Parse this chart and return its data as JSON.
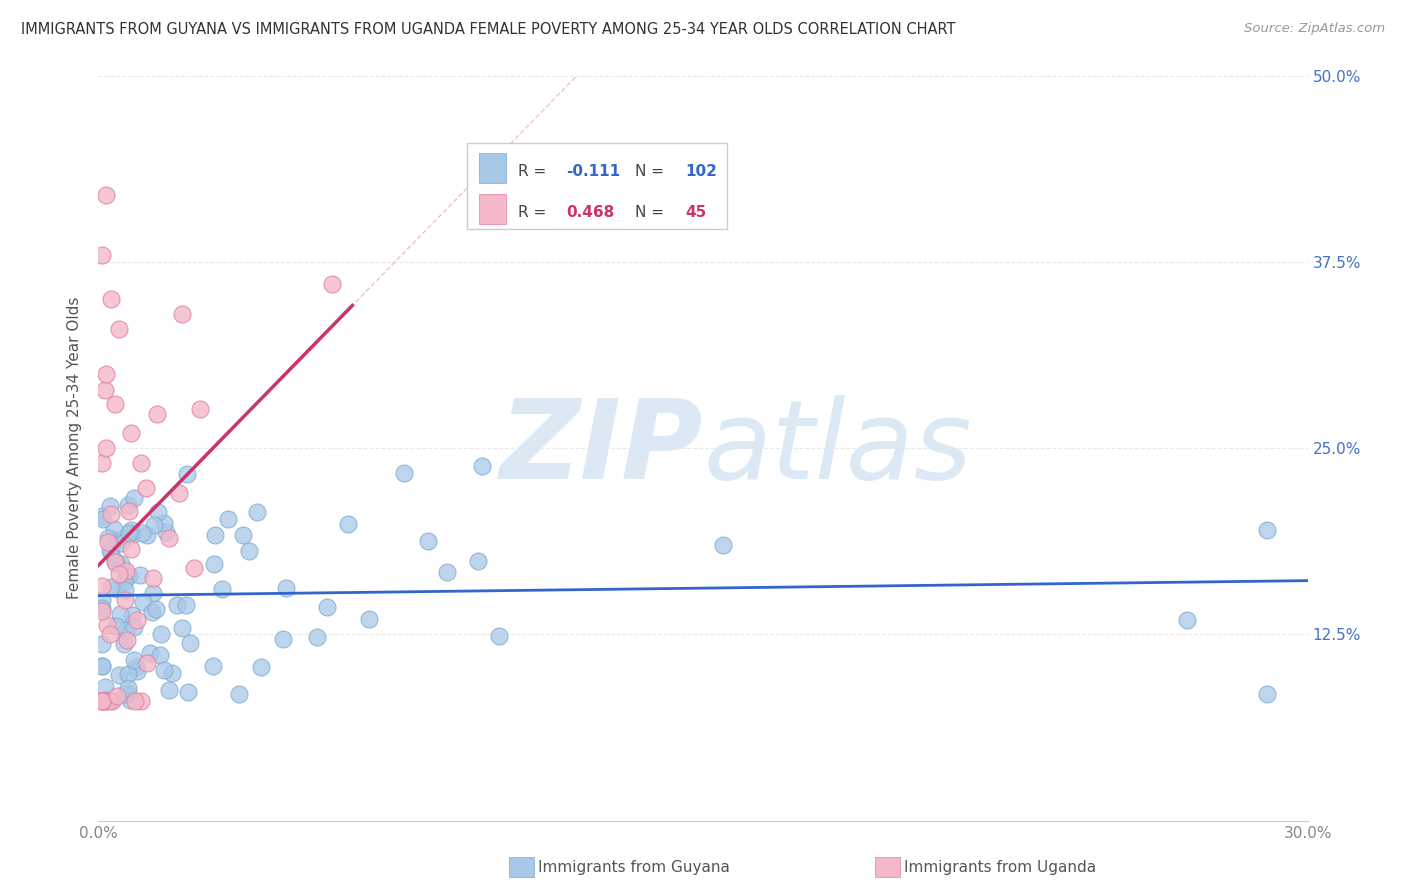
{
  "title": "IMMIGRANTS FROM GUYANA VS IMMIGRANTS FROM UGANDA FEMALE POVERTY AMONG 25-34 YEAR OLDS CORRELATION CHART",
  "source": "Source: ZipAtlas.com",
  "ylabel": "Female Poverty Among 25-34 Year Olds",
  "xlim": [
    0.0,
    0.3
  ],
  "ylim": [
    0.0,
    0.5
  ],
  "xticklabels": [
    "0.0%",
    "30.0%"
  ],
  "ytick_vals": [
    0.0,
    0.125,
    0.25,
    0.375,
    0.5
  ],
  "yticklabels_right": [
    "",
    "12.5%",
    "25.0%",
    "37.5%",
    "50.0%"
  ],
  "guyana_R": -0.111,
  "guyana_N": 102,
  "uganda_R": 0.468,
  "uganda_N": 45,
  "guyana_color": "#a8c8e8",
  "uganda_color": "#f4b8c8",
  "guyana_line_color": "#3366cc",
  "uganda_line_color": "#cc3366",
  "guyana_edge_color": "#7aaad0",
  "uganda_edge_color": "#e080a0",
  "watermark_zip": "ZIP",
  "watermark_atlas": "atlas",
  "watermark_color": "#dde8f5",
  "background_color": "#ffffff",
  "grid_color": "#e8e8e8",
  "title_color": "#333333",
  "axis_label_color": "#555555",
  "tick_color_right": "#4472c4",
  "tick_color_left": "#888888",
  "legend_edge_color": "#cccccc",
  "guyana_seed": 7,
  "uganda_seed": 13
}
